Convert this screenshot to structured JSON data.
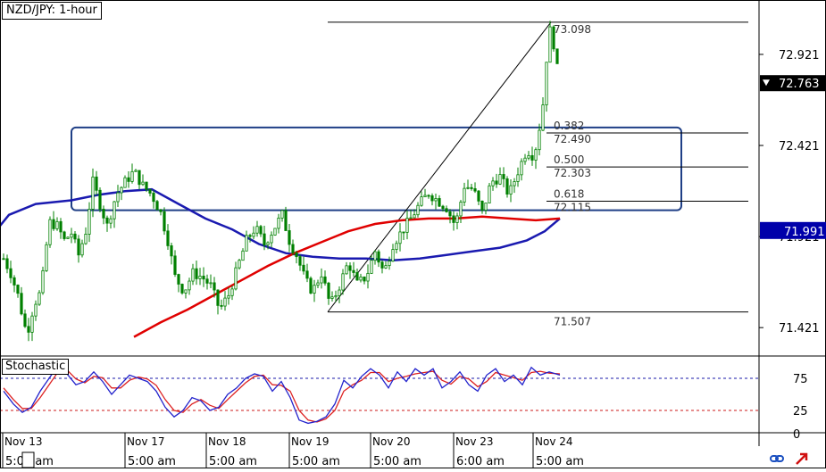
{
  "header": {
    "title": "NZD/JPY: 1-hour"
  },
  "stochastic": {
    "title": "Stochastic",
    "levels": [
      75,
      25,
      0
    ]
  },
  "colors": {
    "candle": "#008000",
    "ma_fast": "#1a1ab0",
    "ma_slow": "#e00000",
    "box": "#1f3f86",
    "stoch_k": "#2222cc",
    "stoch_d": "#dd2222",
    "current_price_bg": "#0000aa"
  },
  "chart_data": {
    "type": "candlestick",
    "title": "NZD/JPY: 1-hour",
    "price_axis": {
      "range": [
        71.27,
        73.2
      ],
      "ticks": [
        "72.921",
        "72.421",
        "71.921",
        "71.421"
      ],
      "current_price": "72.763",
      "ma_price": "71.991"
    },
    "time_axis": {
      "date_labels": [
        "Nov 13",
        "Nov 17",
        "Nov 18",
        "Nov 19",
        "Nov 20",
        "Nov 23",
        "Nov 24"
      ],
      "time_labels": [
        "5:00 am",
        "5:00 am",
        "5:00 am",
        "5:00 am",
        "5:00 am",
        "6:00 am",
        "5:00 am"
      ]
    },
    "fibonacci": {
      "high": "73.098",
      "low": "71.507",
      "levels": [
        {
          "ratio": "0.382",
          "price": "72.490"
        },
        {
          "ratio": "0.500",
          "price": "72.303"
        },
        {
          "ratio": "0.618",
          "price": "72.115"
        }
      ]
    },
    "zone": {
      "top": 72.51,
      "bottom": 72.08
    },
    "ma_fast": [
      [
        0,
        71.98
      ],
      [
        10,
        72.04
      ],
      [
        40,
        72.1
      ],
      [
        80,
        72.12
      ],
      [
        110,
        72.15
      ],
      [
        140,
        72.17
      ],
      [
        170,
        72.18
      ],
      [
        200,
        72.1
      ],
      [
        230,
        72.02
      ],
      [
        260,
        71.96
      ],
      [
        290,
        71.88
      ],
      [
        320,
        71.83
      ],
      [
        350,
        71.81
      ],
      [
        380,
        71.8
      ],
      [
        410,
        71.8
      ],
      [
        440,
        71.79
      ],
      [
        470,
        71.8
      ],
      [
        500,
        71.82
      ],
      [
        530,
        71.84
      ],
      [
        560,
        71.86
      ],
      [
        590,
        71.9
      ],
      [
        610,
        71.95
      ],
      [
        627,
        72.02
      ]
    ],
    "ma_slow": [
      [
        150,
        71.37
      ],
      [
        180,
        71.45
      ],
      [
        210,
        71.52
      ],
      [
        240,
        71.6
      ],
      [
        270,
        71.68
      ],
      [
        300,
        71.76
      ],
      [
        330,
        71.83
      ],
      [
        360,
        71.89
      ],
      [
        390,
        71.95
      ],
      [
        420,
        71.99
      ],
      [
        450,
        72.01
      ],
      [
        480,
        72.02
      ],
      [
        510,
        72.02
      ],
      [
        540,
        72.03
      ],
      [
        570,
        72.02
      ],
      [
        600,
        72.01
      ],
      [
        627,
        72.02
      ]
    ],
    "price_path": [
      [
        4,
        71.8
      ],
      [
        12,
        71.72
      ],
      [
        20,
        71.6
      ],
      [
        30,
        71.38
      ],
      [
        38,
        71.55
      ],
      [
        46,
        71.62
      ],
      [
        55,
        72.0
      ],
      [
        64,
        71.98
      ],
      [
        72,
        71.9
      ],
      [
        80,
        71.94
      ],
      [
        88,
        71.82
      ],
      [
        96,
        71.95
      ],
      [
        104,
        72.22
      ],
      [
        112,
        72.1
      ],
      [
        120,
        71.98
      ],
      [
        130,
        72.15
      ],
      [
        140,
        72.22
      ],
      [
        150,
        72.28
      ],
      [
        160,
        72.2
      ],
      [
        170,
        72.15
      ],
      [
        180,
        72.05
      ],
      [
        188,
        71.9
      ],
      [
        196,
        71.7
      ],
      [
        206,
        71.62
      ],
      [
        216,
        71.72
      ],
      [
        226,
        71.7
      ],
      [
        236,
        71.65
      ],
      [
        246,
        71.52
      ],
      [
        256,
        71.6
      ],
      [
        266,
        71.75
      ],
      [
        276,
        71.9
      ],
      [
        286,
        71.97
      ],
      [
        296,
        71.88
      ],
      [
        306,
        71.96
      ],
      [
        316,
        72.04
      ],
      [
        324,
        71.9
      ],
      [
        332,
        71.82
      ],
      [
        342,
        71.68
      ],
      [
        350,
        71.62
      ],
      [
        360,
        71.72
      ],
      [
        370,
        71.54
      ],
      [
        380,
        71.65
      ],
      [
        390,
        71.78
      ],
      [
        400,
        71.66
      ],
      [
        410,
        71.7
      ],
      [
        420,
        71.84
      ],
      [
        430,
        71.72
      ],
      [
        440,
        71.88
      ],
      [
        450,
        71.95
      ],
      [
        460,
        72.02
      ],
      [
        470,
        72.1
      ],
      [
        480,
        72.16
      ],
      [
        490,
        72.12
      ],
      [
        500,
        72.08
      ],
      [
        510,
        71.98
      ],
      [
        520,
        72.2
      ],
      [
        530,
        72.18
      ],
      [
        540,
        72.05
      ],
      [
        550,
        72.22
      ],
      [
        560,
        72.25
      ],
      [
        570,
        72.15
      ],
      [
        580,
        72.28
      ],
      [
        590,
        72.4
      ],
      [
        598,
        72.36
      ],
      [
        604,
        72.52
      ],
      [
        608,
        72.65
      ],
      [
        612,
        72.9
      ],
      [
        616,
        73.05
      ],
      [
        620,
        72.98
      ],
      [
        624,
        72.84
      ],
      [
        627,
        72.76
      ]
    ],
    "stochastic": {
      "range": [
        0,
        100
      ],
      "k": [
        [
          4,
          55
        ],
        [
          15,
          35
        ],
        [
          25,
          22
        ],
        [
          35,
          30
        ],
        [
          45,
          55
        ],
        [
          55,
          75
        ],
        [
          65,
          95
        ],
        [
          75,
          82
        ],
        [
          85,
          65
        ],
        [
          95,
          70
        ],
        [
          105,
          85
        ],
        [
          115,
          70
        ],
        [
          125,
          50
        ],
        [
          135,
          65
        ],
        [
          145,
          80
        ],
        [
          155,
          75
        ],
        [
          165,
          70
        ],
        [
          175,
          55
        ],
        [
          185,
          30
        ],
        [
          195,
          15
        ],
        [
          205,
          25
        ],
        [
          215,
          45
        ],
        [
          225,
          40
        ],
        [
          235,
          25
        ],
        [
          245,
          30
        ],
        [
          255,
          50
        ],
        [
          265,
          60
        ],
        [
          275,
          75
        ],
        [
          285,
          82
        ],
        [
          295,
          78
        ],
        [
          305,
          55
        ],
        [
          315,
          70
        ],
        [
          325,
          45
        ],
        [
          335,
          10
        ],
        [
          345,
          5
        ],
        [
          355,
          8
        ],
        [
          365,
          15
        ],
        [
          375,
          35
        ],
        [
          385,
          72
        ],
        [
          395,
          60
        ],
        [
          405,
          78
        ],
        [
          415,
          90
        ],
        [
          425,
          80
        ],
        [
          435,
          60
        ],
        [
          445,
          85
        ],
        [
          455,
          70
        ],
        [
          465,
          90
        ],
        [
          475,
          80
        ],
        [
          485,
          90
        ],
        [
          495,
          60
        ],
        [
          505,
          70
        ],
        [
          515,
          85
        ],
        [
          525,
          65
        ],
        [
          535,
          55
        ],
        [
          545,
          80
        ],
        [
          555,
          90
        ],
        [
          565,
          70
        ],
        [
          575,
          80
        ],
        [
          585,
          65
        ],
        [
          595,
          92
        ],
        [
          605,
          80
        ],
        [
          615,
          85
        ],
        [
          627,
          80
        ]
      ],
      "d": [
        [
          4,
          60
        ],
        [
          15,
          42
        ],
        [
          25,
          28
        ],
        [
          35,
          28
        ],
        [
          45,
          45
        ],
        [
          55,
          65
        ],
        [
          65,
          85
        ],
        [
          75,
          88
        ],
        [
          85,
          74
        ],
        [
          95,
          68
        ],
        [
          105,
          78
        ],
        [
          115,
          76
        ],
        [
          125,
          60
        ],
        [
          135,
          60
        ],
        [
          145,
          72
        ],
        [
          155,
          77
        ],
        [
          165,
          74
        ],
        [
          175,
          64
        ],
        [
          185,
          42
        ],
        [
          195,
          25
        ],
        [
          205,
          22
        ],
        [
          215,
          35
        ],
        [
          225,
          42
        ],
        [
          235,
          33
        ],
        [
          245,
          28
        ],
        [
          255,
          42
        ],
        [
          265,
          55
        ],
        [
          275,
          68
        ],
        [
          285,
          78
        ],
        [
          295,
          80
        ],
        [
          305,
          65
        ],
        [
          315,
          64
        ],
        [
          325,
          55
        ],
        [
          335,
          25
        ],
        [
          345,
          10
        ],
        [
          355,
          7
        ],
        [
          365,
          12
        ],
        [
          375,
          25
        ],
        [
          385,
          55
        ],
        [
          395,
          65
        ],
        [
          405,
          72
        ],
        [
          415,
          84
        ],
        [
          425,
          84
        ],
        [
          435,
          70
        ],
        [
          445,
          75
        ],
        [
          455,
          78
        ],
        [
          465,
          82
        ],
        [
          475,
          84
        ],
        [
          485,
          86
        ],
        [
          495,
          72
        ],
        [
          505,
          66
        ],
        [
          515,
          78
        ],
        [
          525,
          74
        ],
        [
          535,
          62
        ],
        [
          545,
          70
        ],
        [
          555,
          84
        ],
        [
          565,
          80
        ],
        [
          575,
          76
        ],
        [
          585,
          72
        ],
        [
          595,
          84
        ],
        [
          605,
          86
        ],
        [
          615,
          83
        ],
        [
          627,
          82
        ]
      ]
    }
  }
}
